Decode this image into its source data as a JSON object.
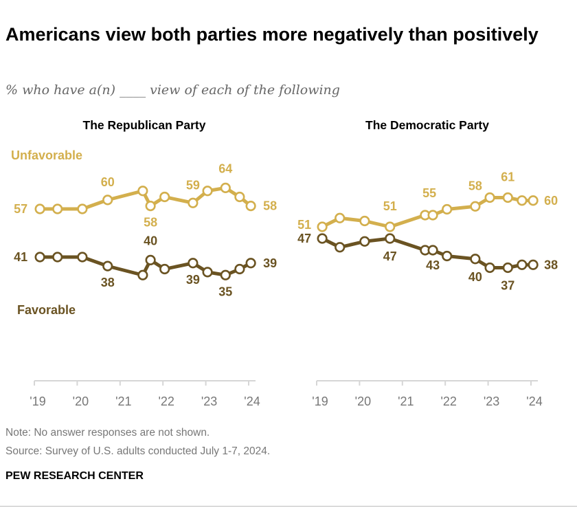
{
  "title": "Americans view both parties more negatively than positively",
  "subtitle": "% who have a(n) ____ view of each of the following",
  "note": "Note: No answer responses are not shown.",
  "source": "Source: Survey of U.S. adults conducted July 1-7, 2024.",
  "brand": "PEW RESEARCH CENTER",
  "colors": {
    "unfavorable": "#D3AF4D",
    "favorable": "#6A5322",
    "axis": "#d6d6d6"
  },
  "chart_data": [
    {
      "type": "line",
      "title": "The Republican Party",
      "x_ticks": [
        "'19",
        "'20",
        "'21",
        "'22",
        "'23",
        "'24"
      ],
      "xlim": [
        2019,
        2024.15
      ],
      "x": [
        2019.13,
        2019.54,
        2020.12,
        2020.71,
        2021.53,
        2021.71,
        2022.04,
        2022.7,
        2023.04,
        2023.46,
        2023.79,
        2024.05
      ],
      "series": [
        {
          "name": "Unfavorable",
          "values": [
            57,
            57,
            57,
            60,
            63,
            58,
            61,
            59,
            63,
            64,
            61,
            58
          ],
          "labeled": [
            0,
            3,
            5,
            7,
            9,
            11
          ]
        },
        {
          "name": "Favorable",
          "values": [
            41,
            41,
            41,
            38,
            35,
            40,
            37,
            39,
            36,
            35,
            37,
            39
          ],
          "labeled": [
            0,
            3,
            5,
            7,
            9,
            11
          ]
        }
      ]
    },
    {
      "type": "line",
      "title": "The Democratic Party",
      "x_ticks": [
        "'19",
        "'20",
        "'21",
        "'22",
        "'23",
        "'24"
      ],
      "xlim": [
        2019,
        2024.15
      ],
      "x": [
        2019.13,
        2019.54,
        2020.12,
        2020.71,
        2021.53,
        2021.71,
        2022.04,
        2022.7,
        2023.04,
        2023.46,
        2023.79,
        2024.05
      ],
      "series": [
        {
          "name": "Unfavorable",
          "values": [
            51,
            54,
            53,
            51,
            55,
            55,
            57,
            58,
            61,
            61,
            60,
            60
          ],
          "labeled": [
            0,
            3,
            5,
            7,
            9,
            11
          ]
        },
        {
          "name": "Favorable",
          "values": [
            47,
            44,
            46,
            47,
            43,
            43,
            41,
            40,
            37,
            37,
            38,
            38
          ],
          "labeled": [
            0,
            3,
            5,
            7,
            9,
            11
          ]
        }
      ]
    }
  ]
}
